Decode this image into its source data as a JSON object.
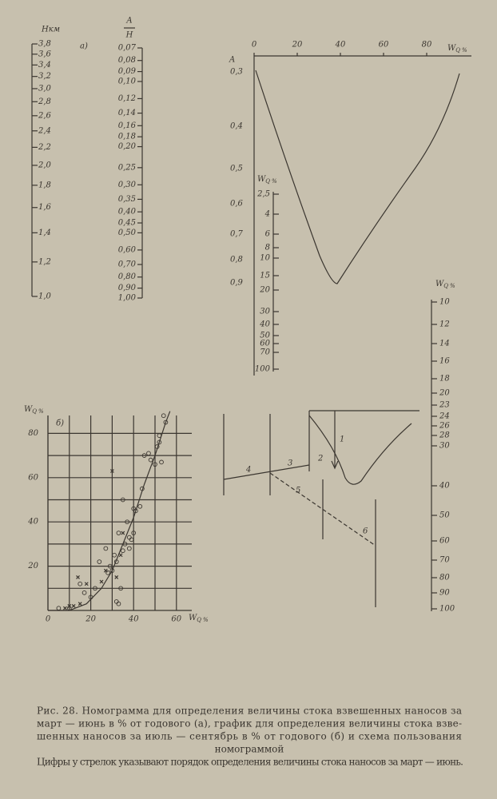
{
  "figure_a": {
    "label": "а)",
    "h_scale": {
      "title": "Нкм",
      "ticks": [
        "3,8",
        "3,6",
        "3,4",
        "3,2",
        "3,0",
        "2,8",
        "2,6",
        "2,4",
        "2,2",
        "2,0",
        "1,8",
        "1,6",
        "1,4",
        "1,2",
        "1,0"
      ]
    },
    "ah_scale": {
      "numerator": "A",
      "denominator": "H",
      "ticks": [
        "0,07",
        "0,08",
        "0,09",
        "0,10",
        "0,12",
        "0,14",
        "0,16",
        "0,18",
        "0,20",
        "0,25",
        "0,30",
        "0,35",
        "0,40",
        "0,45",
        "0,50",
        "0,60",
        "0,70",
        "0,80",
        "0,90",
        "1,00"
      ]
    }
  },
  "figure_top": {
    "x_label": {
      "symbol": "W",
      "subscript": "Q",
      "unit": "%"
    },
    "x_ticks": [
      0,
      20,
      40,
      60,
      80
    ],
    "a_title": "A",
    "a_ticks": [
      "0,3",
      "0,4",
      "0,5",
      "0,6",
      "0,7",
      "0,8",
      "0,9"
    ],
    "inner_scale": {
      "label": {
        "symbol": "W",
        "subscript": "Q",
        "unit": "%"
      },
      "ticks": [
        "2,5",
        "4",
        "6",
        "8",
        "10",
        "15",
        "20",
        "30",
        "40",
        "50",
        "60",
        "70",
        "100"
      ]
    },
    "right_scale": {
      "label": {
        "symbol": "W",
        "subscript": "Q",
        "unit": "%"
      },
      "ticks": [
        10,
        12,
        14,
        16,
        18,
        20,
        23,
        24,
        26,
        28,
        30,
        40,
        50,
        60,
        70,
        80,
        90,
        100
      ]
    }
  },
  "figure_b": {
    "label": "б)",
    "y_label": {
      "symbol": "W",
      "subscript": "Q",
      "unit": "%"
    },
    "x_label": {
      "symbol": "W",
      "subscript": "Q",
      "unit": "%"
    },
    "x_ticks": [
      0,
      20,
      40,
      60
    ],
    "y_ticks": [
      20,
      40,
      60,
      80
    ],
    "circles": {
      "x": [
        5,
        10,
        15,
        17,
        20,
        22,
        24,
        27,
        28,
        29,
        30,
        31,
        32,
        33,
        34,
        35,
        35,
        36,
        37,
        38,
        38,
        39,
        40,
        40,
        41,
        43,
        44,
        45,
        47,
        48,
        50,
        51,
        52,
        53,
        54,
        55,
        52,
        32,
        33
      ],
      "y": [
        1,
        1,
        12,
        8,
        6,
        10,
        22,
        28,
        17,
        20,
        18,
        25,
        22,
        35,
        10,
        50,
        27,
        30,
        40,
        33,
        28,
        32,
        35,
        46,
        45,
        47,
        55,
        70,
        71,
        68,
        66,
        74,
        76,
        67,
        88,
        85,
        79,
        4,
        3
      ]
    },
    "crosses": {
      "x": [
        8,
        10,
        12,
        14,
        15,
        18,
        25,
        27,
        30,
        32,
        34,
        35
      ],
      "y": [
        1,
        2,
        2,
        15,
        3,
        12,
        13,
        18,
        63,
        15,
        25,
        35
      ]
    },
    "curve": {
      "x": [
        0,
        10,
        18,
        25,
        30,
        35,
        40,
        45,
        50,
        55,
        57
      ],
      "y": [
        0,
        0,
        3,
        10,
        18,
        30,
        42,
        57,
        70,
        85,
        90
      ]
    }
  },
  "schema": {
    "steps": [
      "1",
      "2",
      "3",
      "4",
      "5",
      "6"
    ]
  },
  "caption": {
    "lines": [
      "Рис. 28. Номограмма для определения величины стока взвешенных наносов за",
      "март — июнь в % от годового (а), график для определения величины стока взве-",
      "шенных наносов за июль — сентябрь в % от годового (б) и схема пользования",
      "номограммой"
    ],
    "note": "Цифры у стрелок указывают порядок определения величины стока наносов за март — июнь."
  }
}
